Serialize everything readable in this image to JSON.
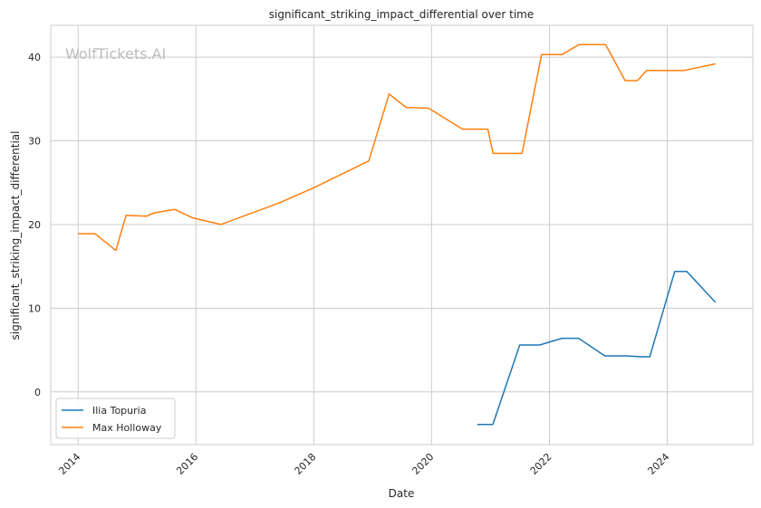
{
  "chart_data": {
    "type": "line",
    "title": "significant_striking_impact_differential over time",
    "xlabel": "Date",
    "ylabel": "significant_striking_impact_differential",
    "watermark": "WolfTickets.AI",
    "x_ticks": [
      "2014",
      "2016",
      "2018",
      "2020",
      "2022",
      "2024"
    ],
    "y_ticks": [
      "0",
      "10",
      "20",
      "30",
      "40"
    ],
    "xlim": [
      "2013-07-15",
      "2025-06-15"
    ],
    "ylim": [
      -6.3,
      43.8
    ],
    "grid": true,
    "legend_position": "bottom-left",
    "series": [
      {
        "name": "Ilia Topuria",
        "color": "#1f77b4",
        "points": [
          [
            "2020-10-10",
            -3.9
          ],
          [
            "2021-01-15",
            -3.9
          ],
          [
            "2021-07-01",
            5.6
          ],
          [
            "2021-11-01",
            5.6
          ],
          [
            "2022-03-20",
            6.4
          ],
          [
            "2022-07-01",
            6.4
          ],
          [
            "2022-12-10",
            4.3
          ],
          [
            "2023-04-15",
            4.3
          ],
          [
            "2023-08-01",
            4.2
          ],
          [
            "2023-09-15",
            4.2
          ],
          [
            "2024-02-17",
            14.4
          ],
          [
            "2024-05-01",
            14.4
          ],
          [
            "2024-10-26",
            10.7
          ]
        ]
      },
      {
        "name": "Max Holloway",
        "color": "#ff7f0e",
        "points": [
          [
            "2014-01-01",
            18.9
          ],
          [
            "2014-04-15",
            18.9
          ],
          [
            "2014-08-23",
            16.9
          ],
          [
            "2014-10-25",
            21.1
          ],
          [
            "2015-02-28",
            21.0
          ],
          [
            "2015-04-20",
            21.4
          ],
          [
            "2015-08-23",
            21.8
          ],
          [
            "2015-12-12",
            20.8
          ],
          [
            "2016-06-04",
            20.0
          ],
          [
            "2017-06-03",
            22.6
          ],
          [
            "2018-01-01",
            24.4
          ],
          [
            "2018-12-08",
            27.6
          ],
          [
            "2019-04-13",
            35.6
          ],
          [
            "2019-07-27",
            34.0
          ],
          [
            "2019-12-14",
            33.9
          ],
          [
            "2020-07-11",
            31.4
          ],
          [
            "2020-12-15",
            31.4
          ],
          [
            "2021-01-16",
            28.5
          ],
          [
            "2021-07-15",
            28.5
          ],
          [
            "2021-11-13",
            40.3
          ],
          [
            "2022-03-20",
            40.3
          ],
          [
            "2022-07-02",
            41.5
          ],
          [
            "2022-12-15",
            41.5
          ],
          [
            "2023-04-15",
            37.2
          ],
          [
            "2023-07-01",
            37.2
          ],
          [
            "2023-08-26",
            38.4
          ],
          [
            "2024-04-13",
            38.4
          ],
          [
            "2024-10-26",
            39.2
          ]
        ]
      }
    ]
  }
}
